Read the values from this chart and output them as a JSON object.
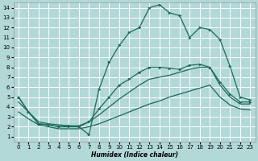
{
  "xlabel": "Humidex (Indice chaleur)",
  "background_color": "#b2d8d8",
  "line_color": "#1a6b5a",
  "grid_color": "#ffffff",
  "xlim": [
    -0.5,
    23.5
  ],
  "ylim": [
    0.5,
    14.5
  ],
  "xticks": [
    0,
    1,
    2,
    3,
    4,
    5,
    6,
    7,
    8,
    9,
    10,
    11,
    12,
    13,
    14,
    15,
    16,
    17,
    18,
    19,
    20,
    21,
    22,
    23
  ],
  "yticks": [
    1,
    2,
    3,
    4,
    5,
    6,
    7,
    8,
    9,
    10,
    11,
    12,
    13,
    14
  ],
  "curves": [
    {
      "x": [
        0,
        1,
        2,
        3,
        4,
        5,
        6,
        7,
        8,
        9,
        10,
        11,
        12,
        13,
        14,
        15,
        16,
        17,
        18,
        19,
        20,
        21,
        22,
        23
      ],
      "y": [
        5.0,
        3.5,
        2.3,
        2.2,
        2.0,
        2.1,
        2.0,
        1.2,
        5.8,
        8.5,
        10.2,
        11.5,
        12.0,
        14.0,
        14.3,
        13.5,
        13.2,
        11.0,
        12.0,
        11.8,
        10.8,
        8.1,
        5.0,
        4.7
      ],
      "has_markers": true
    },
    {
      "x": [
        0,
        1,
        2,
        3,
        4,
        5,
        6,
        7,
        8,
        9,
        10,
        11,
        12,
        13,
        14,
        15,
        16,
        17,
        18,
        19,
        20,
        21,
        22,
        23
      ],
      "y": [
        5.0,
        3.5,
        2.3,
        2.2,
        2.0,
        2.0,
        2.0,
        2.5,
        3.8,
        5.0,
        6.2,
        6.8,
        7.5,
        8.0,
        8.0,
        7.9,
        7.8,
        8.2,
        8.3,
        8.0,
        6.5,
        5.3,
        4.5,
        4.5
      ],
      "has_markers": true
    },
    {
      "x": [
        0,
        1,
        2,
        3,
        4,
        5,
        6,
        7,
        8,
        9,
        10,
        11,
        12,
        13,
        14,
        15,
        16,
        17,
        18,
        19,
        20,
        21,
        22,
        23
      ],
      "y": [
        4.5,
        3.5,
        2.5,
        2.3,
        2.2,
        2.1,
        2.1,
        2.5,
        3.2,
        4.0,
        4.8,
        5.5,
        6.2,
        6.8,
        7.0,
        7.2,
        7.5,
        7.8,
        8.0,
        8.0,
        6.2,
        5.0,
        4.3,
        4.3
      ],
      "has_markers": false
    },
    {
      "x": [
        0,
        1,
        2,
        3,
        4,
        5,
        6,
        7,
        8,
        9,
        10,
        11,
        12,
        13,
        14,
        15,
        16,
        17,
        18,
        19,
        20,
        21,
        22,
        23
      ],
      "y": [
        3.5,
        2.8,
        2.2,
        2.0,
        1.8,
        1.8,
        1.8,
        2.0,
        2.3,
        2.7,
        3.1,
        3.5,
        3.9,
        4.3,
        4.6,
        5.0,
        5.3,
        5.6,
        5.9,
        6.2,
        5.0,
        4.2,
        3.8,
        3.7
      ],
      "has_markers": false
    }
  ]
}
